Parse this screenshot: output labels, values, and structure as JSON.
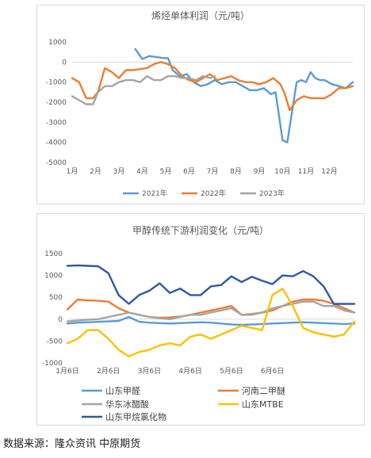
{
  "source_note": "数据来源：隆众资讯 中原期货",
  "chart_data": [
    {
      "type": "line",
      "title": "烯烃单体利润（元/吨）",
      "categories": [
        "1月",
        "2月",
        "3月",
        "4月",
        "5月",
        "6月",
        "7月",
        "8月",
        "9月",
        "10月",
        "11月",
        "12月"
      ],
      "ylim": [
        -5000,
        1000
      ],
      "yticks": [
        1000,
        0,
        -1000,
        -2000,
        -3000,
        -4000,
        -5000
      ],
      "grid": false,
      "legend_position": "bottom",
      "series": [
        {
          "name": "2021年",
          "color": "#5b9bd5",
          "x": [
            3.7,
            4.0,
            4.3,
            4.6,
            4.9,
            5.1,
            5.3,
            5.6,
            5.9,
            6.2,
            6.5,
            6.8,
            7.1,
            7.4,
            7.7,
            8.0,
            8.3,
            8.6,
            8.9,
            9.2,
            9.5,
            9.7,
            10.0,
            10.2,
            10.4,
            10.6,
            10.8,
            11.0,
            11.2,
            11.4,
            11.6,
            11.8,
            12.1,
            12.4,
            12.7,
            13.0
          ],
          "values": [
            650,
            150,
            300,
            250,
            200,
            200,
            -400,
            -700,
            -600,
            -1000,
            -1200,
            -1100,
            -900,
            -1100,
            -1000,
            -1000,
            -1200,
            -1400,
            -1400,
            -1300,
            -1600,
            -1500,
            -3900,
            -4000,
            -2500,
            -1000,
            -900,
            -1000,
            -500,
            -800,
            -900,
            -900,
            -1100,
            -1200,
            -1300,
            -1000
          ]
        },
        {
          "name": "2022年",
          "color": "#ed7d31",
          "x": [
            1.0,
            1.3,
            1.6,
            1.9,
            2.1,
            2.4,
            2.7,
            3.0,
            3.3,
            3.6,
            3.9,
            4.2,
            4.5,
            4.8,
            5.1,
            5.4,
            5.7,
            6.0,
            6.3,
            6.6,
            6.9,
            7.2,
            7.5,
            7.8,
            8.1,
            8.4,
            8.7,
            9.0,
            9.3,
            9.6,
            9.9,
            10.1,
            10.3,
            10.6,
            10.9,
            11.2,
            11.5,
            11.8,
            12.1,
            12.4,
            12.7,
            13.0
          ],
          "values": [
            -800,
            -1000,
            -1800,
            -1800,
            -1500,
            -300,
            -500,
            -800,
            -400,
            -400,
            -350,
            -300,
            -100,
            0,
            -100,
            -300,
            -700,
            -900,
            -1000,
            -800,
            -600,
            -900,
            -800,
            -700,
            -900,
            -1000,
            -1000,
            -1100,
            -1000,
            -800,
            -1100,
            -1600,
            -2400,
            -1900,
            -1700,
            -1800,
            -1800,
            -1800,
            -1600,
            -1300,
            -1300,
            -1200
          ]
        },
        {
          "name": "2023年",
          "color": "#a5a5a5",
          "x": [
            1.0,
            1.3,
            1.6,
            1.9,
            2.1,
            2.4,
            2.7,
            3.0,
            3.3,
            3.6,
            3.9,
            4.2,
            4.5,
            4.8,
            5.1,
            5.4,
            5.7,
            6.0,
            6.3,
            6.6,
            6.9,
            7.1
          ],
          "values": [
            -1700,
            -1900,
            -2100,
            -2100,
            -1500,
            -1200,
            -1200,
            -1000,
            -900,
            -900,
            -1000,
            -700,
            -900,
            -900,
            -700,
            -700,
            -800,
            -800,
            -900,
            -700,
            -800,
            -700
          ]
        }
      ]
    },
    {
      "type": "line",
      "title": "甲醇传统下游利润变化（元/吨）",
      "categories": [
        "1月6日",
        "2月6日",
        "3月6日",
        "4月6日",
        "5月6日",
        "6月6日"
      ],
      "ylim": [
        -1000,
        1500
      ],
      "yticks": [
        1500,
        1000,
        500,
        0,
        -500,
        -1000
      ],
      "grid": false,
      "legend_position": "bottom",
      "series": [
        {
          "name": "山东甲醛",
          "color": "#5b9bd5",
          "x": [
            0.0,
            0.25,
            0.5,
            0.75,
            1.0,
            1.25,
            1.5,
            1.75,
            2.0,
            2.25,
            2.5,
            2.75,
            3.0,
            3.25,
            3.5,
            3.75,
            4.0,
            4.25,
            4.5,
            4.75,
            5.0,
            5.25,
            5.5,
            5.75,
            6.0,
            6.25,
            6.5,
            6.75,
            7.0
          ],
          "values": [
            -100,
            -80,
            -70,
            -60,
            -50,
            -40,
            50,
            -60,
            -80,
            -90,
            -100,
            -90,
            -80,
            -70,
            -80,
            -100,
            -120,
            -130,
            -120,
            -110,
            -100,
            -90,
            -80,
            -70,
            -80,
            -90,
            -100,
            -110,
            -100
          ]
        },
        {
          "name": "河南二甲醚",
          "color": "#ed7d31",
          "x": [
            0.0,
            0.25,
            0.5,
            0.75,
            1.0,
            1.25,
            1.5,
            1.75,
            2.0,
            2.25,
            2.5,
            2.75,
            3.0,
            3.25,
            3.5,
            3.75,
            4.0,
            4.25,
            4.5,
            4.75,
            5.0,
            5.25,
            5.5,
            5.75,
            6.0,
            6.25,
            6.5,
            6.75,
            7.0
          ],
          "values": [
            220,
            450,
            430,
            420,
            400,
            250,
            150,
            100,
            50,
            30,
            40,
            60,
            100,
            150,
            200,
            250,
            300,
            100,
            120,
            150,
            200,
            300,
            400,
            450,
            450,
            420,
            350,
            250,
            150
          ]
        },
        {
          "name": "华东冰醋酸",
          "color": "#a5a5a5",
          "x": [
            0.0,
            0.25,
            0.5,
            0.75,
            1.0,
            1.25,
            1.5,
            1.75,
            2.0,
            2.25,
            2.5,
            2.75,
            3.0,
            3.25,
            3.5,
            3.75,
            4.0,
            4.25,
            4.5,
            4.75,
            5.0,
            5.25,
            5.5,
            5.75,
            6.0,
            6.25,
            6.5,
            6.75,
            7.0
          ],
          "values": [
            -50,
            -30,
            -10,
            0,
            50,
            100,
            150,
            100,
            50,
            20,
            0,
            50,
            100,
            100,
            150,
            200,
            250,
            100,
            100,
            150,
            250,
            300,
            350,
            400,
            400,
            300,
            300,
            200,
            150
          ]
        },
        {
          "name": "山东MTBE",
          "color": "#ffc000",
          "x": [
            0.0,
            0.25,
            0.5,
            0.75,
            1.0,
            1.25,
            1.5,
            1.75,
            2.0,
            2.25,
            2.5,
            2.75,
            3.0,
            3.25,
            3.5,
            3.75,
            4.0,
            4.25,
            4.5,
            4.75,
            5.0,
            5.25,
            5.5,
            5.75,
            6.0,
            6.25,
            6.5,
            6.75,
            7.0
          ],
          "values": [
            -550,
            -450,
            -250,
            -250,
            -450,
            -700,
            -850,
            -750,
            -700,
            -600,
            -550,
            -600,
            -400,
            -350,
            -450,
            -350,
            -250,
            -150,
            -200,
            -250,
            550,
            700,
            300,
            -200,
            -300,
            -350,
            -400,
            -350,
            -50
          ]
        },
        {
          "name": "山东甲烷氯化物",
          "color": "#2e59a5",
          "x": [
            0.0,
            0.25,
            0.5,
            0.75,
            1.0,
            1.25,
            1.5,
            1.75,
            2.0,
            2.25,
            2.5,
            2.75,
            3.0,
            3.25,
            3.5,
            3.75,
            4.0,
            4.25,
            4.5,
            4.75,
            5.0,
            5.25,
            5.5,
            5.75,
            6.0,
            6.25,
            6.5,
            6.75,
            7.0
          ],
          "values": [
            1220,
            1230,
            1220,
            1210,
            1050,
            550,
            350,
            550,
            650,
            820,
            600,
            700,
            550,
            550,
            750,
            780,
            980,
            850,
            970,
            880,
            800,
            1000,
            980,
            1100,
            980,
            750,
            350,
            350,
            350
          ]
        }
      ]
    }
  ]
}
